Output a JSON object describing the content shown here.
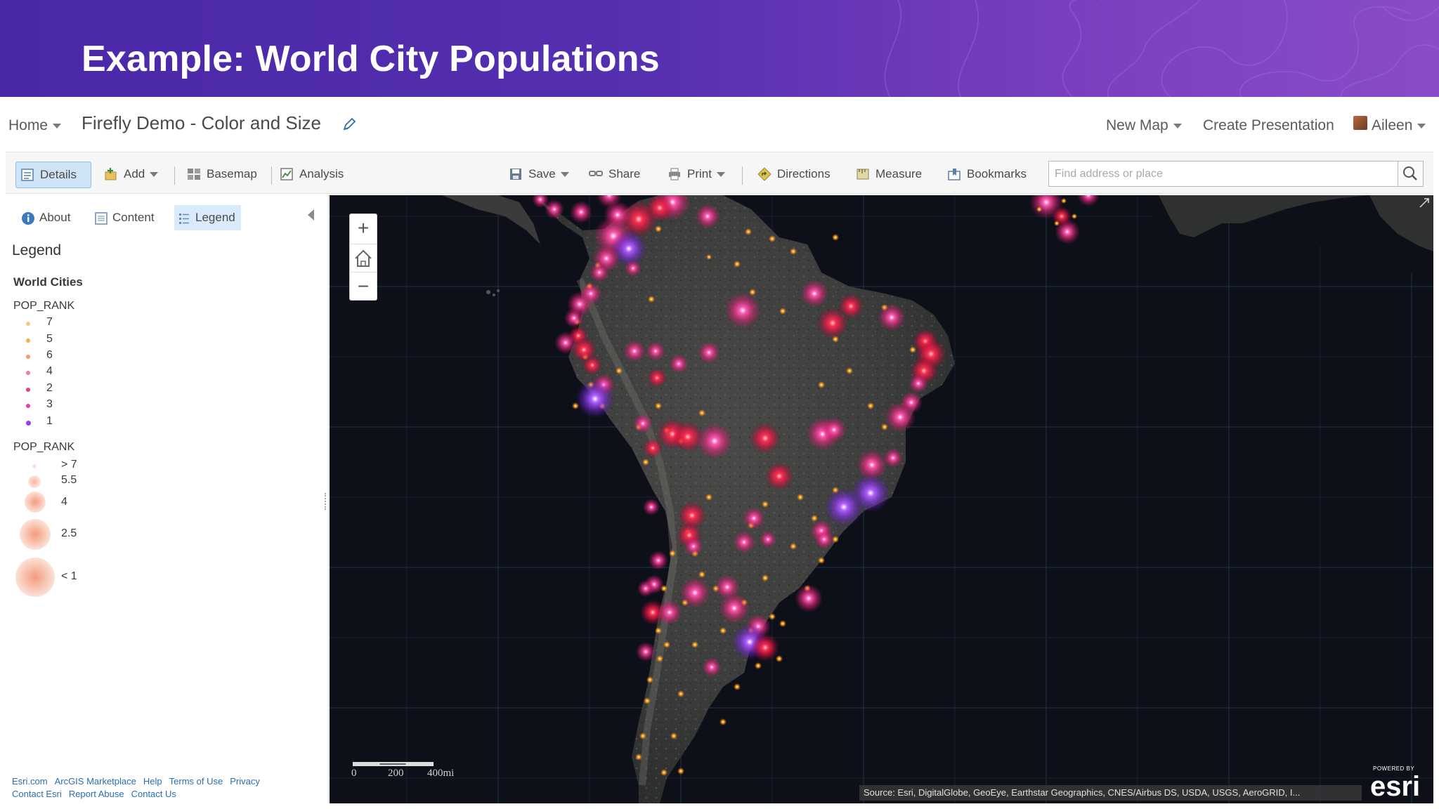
{
  "banner": {
    "title": "Example: World City Populations",
    "colors": {
      "start": "#4a28a8",
      "end": "#8a4cc8"
    }
  },
  "app_header": {
    "home_label": "Home",
    "map_title": "Firefly Demo - Color and Size",
    "edit_icon": "pencil-icon",
    "new_map_label": "New Map",
    "create_presentation_label": "Create Presentation",
    "user_name": "Aileen"
  },
  "toolbar": {
    "details_label": "Details",
    "add_label": "Add",
    "basemap_label": "Basemap",
    "analysis_label": "Analysis",
    "save_label": "Save",
    "share_label": "Share",
    "print_label": "Print",
    "directions_label": "Directions",
    "measure_label": "Measure",
    "bookmarks_label": "Bookmarks",
    "search_placeholder": "Find address or place"
  },
  "panel": {
    "tabs": [
      {
        "label": "About",
        "icon": "info-icon"
      },
      {
        "label": "Content",
        "icon": "content-icon"
      },
      {
        "label": "Legend",
        "icon": "legend-icon",
        "active": true
      }
    ],
    "legend_heading": "Legend",
    "layer_name": "World Cities",
    "color_field": "POP_RANK",
    "color_classes": [
      {
        "label": "7",
        "color": "#f6c98a"
      },
      {
        "label": "5",
        "color": "#f4b24a"
      },
      {
        "label": "6",
        "color": "#f59a6a"
      },
      {
        "label": "4",
        "color": "#f07aa0"
      },
      {
        "label": "2",
        "color": "#ee3e6a"
      },
      {
        "label": "3",
        "color": "#e83aa8"
      },
      {
        "label": "1",
        "color": "#9b3be8"
      }
    ],
    "size_field": "POP_RANK",
    "size_classes": [
      {
        "label": "> 7"
      },
      {
        "label": "5.5"
      },
      {
        "label": "4"
      },
      {
        "label": "2.5"
      },
      {
        "label": "< 1"
      }
    ],
    "footer_links": [
      "Esri.com",
      "ArcGIS Marketplace",
      "Help",
      "Terms of Use",
      "Privacy",
      "Contact Esri",
      "Report Abuse",
      "Contact Us"
    ]
  },
  "map": {
    "zoom_in": "+",
    "zoom_out": "−",
    "scale_labels": [
      "0",
      "200",
      "400mi"
    ],
    "attribution": "Source: Esri, DigitalGlobe, GeoEye, Earthstar Geographics, CNES/Airbus DS, USDA, USGS, AeroGRID, I...",
    "esri_powered": "POWERED BY",
    "esri_word": "esri"
  }
}
